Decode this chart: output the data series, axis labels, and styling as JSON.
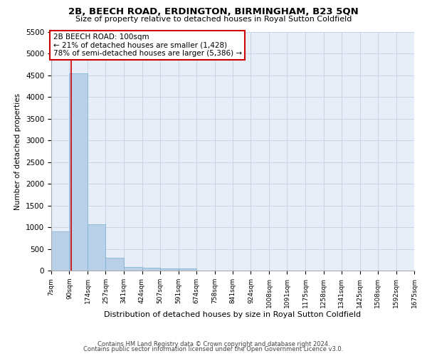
{
  "title1": "2B, BEECH ROAD, ERDINGTON, BIRMINGHAM, B23 5QN",
  "title2": "Size of property relative to detached houses in Royal Sutton Coldfield",
  "xlabel": "Distribution of detached houses by size in Royal Sutton Coldfield",
  "ylabel": "Number of detached properties",
  "footnote1": "Contains HM Land Registry data © Crown copyright and database right 2024.",
  "footnote2": "Contains public sector information licensed under the Open Government Licence v3.0.",
  "bin_labels": [
    "7sqm",
    "90sqm",
    "174sqm",
    "257sqm",
    "341sqm",
    "424sqm",
    "507sqm",
    "591sqm",
    "674sqm",
    "758sqm",
    "841sqm",
    "924sqm",
    "1008sqm",
    "1091sqm",
    "1175sqm",
    "1258sqm",
    "1341sqm",
    "1425sqm",
    "1508sqm",
    "1592sqm",
    "1675sqm"
  ],
  "bin_edges": [
    7,
    90,
    174,
    257,
    341,
    424,
    507,
    591,
    674,
    758,
    841,
    924,
    1008,
    1091,
    1175,
    1258,
    1341,
    1425,
    1508,
    1592,
    1675
  ],
  "bar_heights": [
    900,
    4550,
    1060,
    300,
    85,
    60,
    50,
    55,
    0,
    0,
    0,
    0,
    0,
    0,
    0,
    0,
    0,
    0,
    0,
    0
  ],
  "bar_color": "#b8d0e8",
  "bar_edgecolor": "#7aaed0",
  "grid_color": "#c8d4e8",
  "bg_color": "#e8eef8",
  "property_size": 100,
  "vline_color": "#cc0000",
  "annotation_text": "2B BEECH ROAD: 100sqm\n← 21% of detached houses are smaller (1,428)\n78% of semi-detached houses are larger (5,386) →",
  "annotation_box_color": "#ffffff",
  "annotation_box_edgecolor": "#cc0000",
  "ylim": [
    0,
    5500
  ],
  "yticks": [
    0,
    500,
    1000,
    1500,
    2000,
    2500,
    3000,
    3500,
    4000,
    4500,
    5000,
    5500
  ]
}
